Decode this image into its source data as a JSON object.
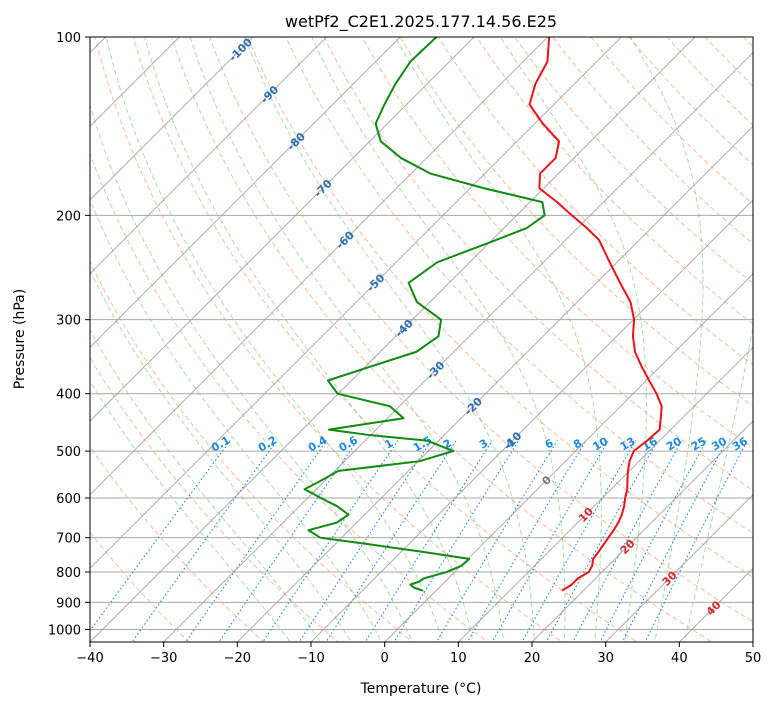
{
  "chart_data": {
    "type": "line",
    "title": "wetPf2_C2E1.2025.177.14.56.E25",
    "xlabel": "Temperature (°C)",
    "ylabel": "Pressure (hPa)",
    "xlim": [
      -40,
      50
    ],
    "ylim": [
      1050,
      100
    ],
    "y_scale": "log",
    "skew": "45deg",
    "grid": true,
    "x_ticks": [
      "−40",
      "−30",
      "−20",
      "−10",
      "0",
      "10",
      "20",
      "30",
      "40",
      "50"
    ],
    "y_ticks": [
      "100",
      "200",
      "300",
      "400",
      "500",
      "600",
      "700",
      "800",
      "900",
      "1000"
    ],
    "colors": {
      "temperature": "#e8141a",
      "dewpoint": "#118a11",
      "dry_adiabat": "#f4a582",
      "moist_adiabat": "#7fbf7b",
      "mixing_ratio": "#1e88e5",
      "isotherm": "#999999",
      "isobar": "#aaaaaa",
      "label_blue": "#2c6eb0",
      "label_red": "#d12c2c"
    },
    "series": [
      {
        "key": "temperature",
        "p": [
          860,
          840,
          820,
          800,
          780,
          760,
          740,
          720,
          700,
          680,
          660,
          640,
          620,
          600,
          580,
          560,
          540,
          520,
          500,
          480,
          460,
          440,
          420,
          400,
          380,
          360,
          340,
          320,
          300,
          280,
          260,
          240,
          220,
          210,
          200,
          190,
          180,
          170,
          160,
          150,
          140,
          130,
          120,
          110,
          100
        ],
        "t": [
          17.1,
          17.6,
          17.6,
          18.2,
          17.8,
          17.0,
          16.8,
          16.5,
          16.2,
          15.9,
          15.5,
          14.9,
          14.1,
          13.1,
          12.2,
          11.0,
          9.8,
          8.7,
          7.9,
          8.3,
          8.5,
          7.1,
          5.6,
          3.2,
          0.4,
          -2.5,
          -5.4,
          -7.8,
          -9.9,
          -12.8,
          -16.8,
          -21.0,
          -25.5,
          -28.8,
          -32.5,
          -36.3,
          -40.6,
          -42.5,
          -42.5,
          -44.3,
          -48.9,
          -53.3,
          -55.3,
          -56.7,
          -59.8
        ]
      },
      {
        "key": "dewpoint",
        "p": [
          860,
          850,
          840,
          830,
          820,
          800,
          780,
          760,
          740,
          720,
          700,
          680,
          660,
          640,
          620,
          600,
          580,
          560,
          540,
          520,
          500,
          480,
          470,
          460,
          440,
          420,
          400,
          380,
          360,
          340,
          320,
          300,
          280,
          260,
          240,
          220,
          210,
          200,
          190,
          180,
          170,
          160,
          150,
          140,
          130,
          120,
          110,
          100
        ],
        "t": [
          -1.8,
          -3.4,
          -4.3,
          -3.5,
          -3.3,
          -1.1,
          0.1,
          0.2,
          -6.9,
          -14.7,
          -22.9,
          -25.5,
          -22.7,
          -22.2,
          -24.8,
          -28.2,
          -31.6,
          -30.5,
          -29.5,
          -19.8,
          -16.6,
          -21.6,
          -30.0,
          -36.4,
          -27.8,
          -31.3,
          -40.1,
          -43.2,
          -39.3,
          -35.1,
          -34.2,
          -36.1,
          -41.8,
          -45.5,
          -44.4,
          -39.4,
          -36.9,
          -36.2,
          -38.3,
          -48.1,
          -57.4,
          -63.5,
          -68.5,
          -71.6,
          -73.0,
          -74.3,
          -75.3,
          -75.1
        ]
      }
    ],
    "isotherm_labels": [
      "-100",
      "-90",
      "-80",
      "-70",
      "-60",
      "-50",
      "-40",
      "-30",
      "-20",
      "-10",
      "0",
      "10",
      "20",
      "30",
      "40"
    ],
    "mixing_ratio_labels": [
      "0.1",
      "0.2",
      "0.4",
      "0.6",
      "1",
      "1.5",
      "2",
      "3",
      "4",
      "6",
      "8",
      "10",
      "13",
      "16",
      "20",
      "25",
      "30",
      "36"
    ]
  }
}
